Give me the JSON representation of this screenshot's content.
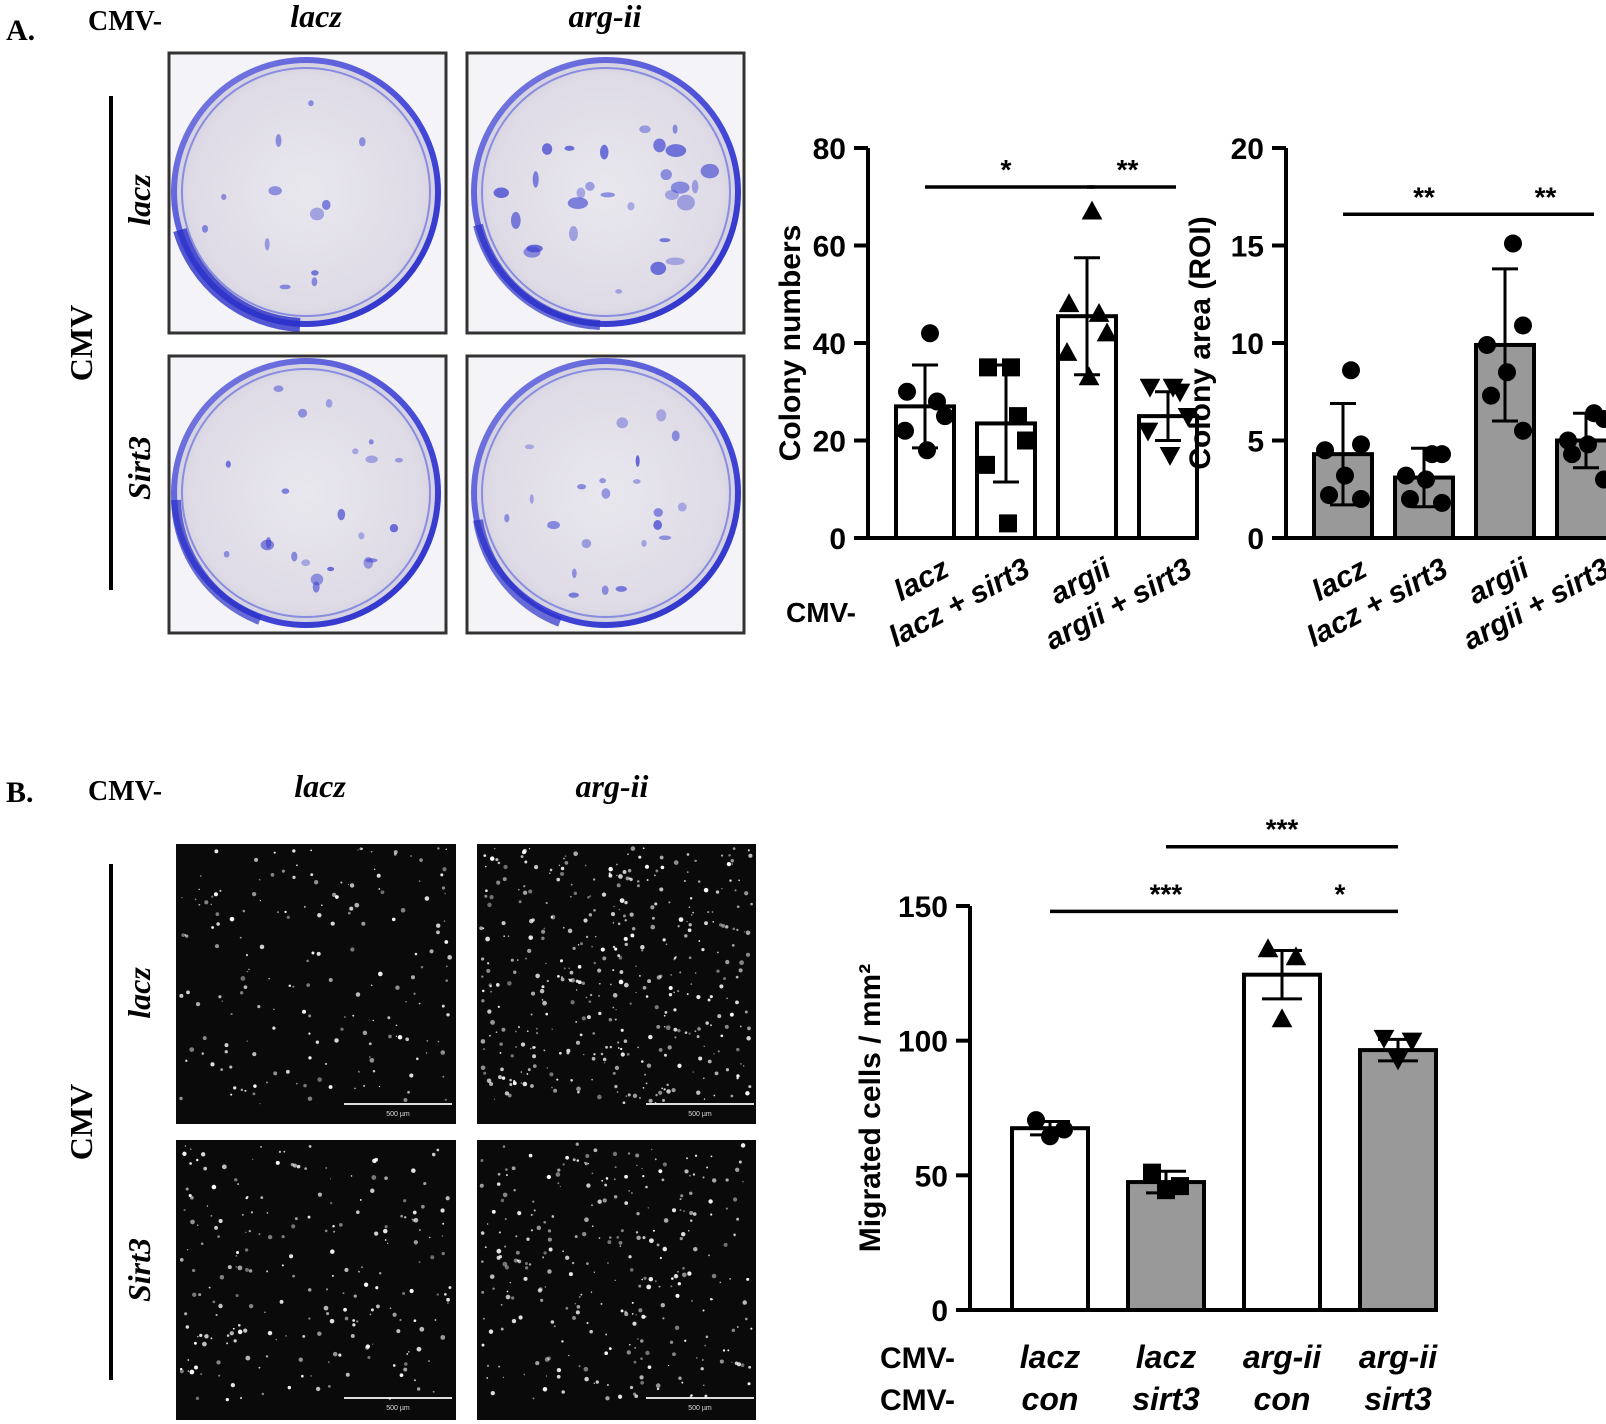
{
  "panel_a": {
    "letter": "A.",
    "cmv_prefix": "CMV-",
    "col_labels": [
      "lacz",
      "arg-ii"
    ],
    "side_label": "CMV",
    "row_labels": [
      "lacz",
      "Sirt3"
    ]
  },
  "panel_b": {
    "letter": "B.",
    "cmv_prefix": "CMV-",
    "col_labels": [
      "lacz",
      "arg-ii"
    ],
    "side_label": "CMV",
    "row_labels": [
      "lacz",
      "Sirt3"
    ],
    "scale_bar_text": "500 µm"
  },
  "colors": {
    "white_bar": "#ffffff",
    "grey_bar": "#999999",
    "plate_blue": "#3a3fd0",
    "plate_bg": "#e4e2ea"
  },
  "chart_data": [
    {
      "id": "colony-numbers",
      "type": "bar",
      "ylabel": "Colony numbers",
      "ylim": [
        0,
        80
      ],
      "yticks": [
        0,
        20,
        40,
        60,
        80
      ],
      "xprefix": "CMV-",
      "categories": [
        "lacz",
        "lacz + sirt3",
        "argii",
        "argii + sirt3"
      ],
      "values": [
        27,
        23.5,
        45.5,
        25
      ],
      "errors": [
        8.5,
        12,
        12,
        5
      ],
      "bar_fills": [
        "#ffffff",
        "#ffffff",
        "#ffffff",
        "#ffffff"
      ],
      "markers": [
        "circle",
        "square",
        "triangle",
        "triangle-down"
      ],
      "points": [
        [
          42,
          30,
          28,
          25,
          22,
          18
        ],
        [
          35,
          35,
          25,
          20,
          15,
          3
        ],
        [
          67,
          48,
          46,
          42,
          38,
          33
        ],
        [
          31,
          31,
          30,
          25,
          22,
          17
        ]
      ],
      "significance": [
        {
          "from": 0,
          "to": 2,
          "label": "*",
          "y": 72
        },
        {
          "from": 2,
          "to": 3,
          "label": "**",
          "y": 72
        }
      ]
    },
    {
      "id": "colony-area",
      "type": "bar",
      "ylabel": "Colony area (ROI)",
      "ylim": [
        0,
        20
      ],
      "yticks": [
        0,
        5,
        10,
        15,
        20
      ],
      "categories": [
        "lacz",
        "lacz + sirt3",
        "argii",
        "argii + sirt3"
      ],
      "values": [
        4.3,
        3.1,
        9.9,
        5
      ],
      "errors": [
        2.6,
        1.5,
        3.9,
        1.4
      ],
      "bar_fills": [
        "#999999",
        "#999999",
        "#999999",
        "#999999"
      ],
      "markers": [
        "circle",
        "circle",
        "circle",
        "circle"
      ],
      "points": [
        [
          8.6,
          4.8,
          4.5,
          3.2,
          2.2,
          2.0
        ],
        [
          4.3,
          4.3,
          3.2,
          3.0,
          2.0,
          1.8
        ],
        [
          15.1,
          10.9,
          9.9,
          8.5,
          7.3,
          5.5
        ],
        [
          6.4,
          6.1,
          5.0,
          4.8,
          4.3,
          3.0
        ]
      ],
      "significance": [
        {
          "from": 0,
          "to": 2,
          "label": "**",
          "y": 16.6
        },
        {
          "from": 2,
          "to": 3,
          "label": "**",
          "y": 16.6
        }
      ]
    },
    {
      "id": "migrated-cells",
      "type": "bar",
      "ylabel": "Migrated cells / mm²",
      "ylim": [
        0,
        150
      ],
      "yticks": [
        0,
        50,
        100,
        150
      ],
      "xprefix_rows": [
        "CMV-",
        "CMV-"
      ],
      "categories_line1": [
        "lacz",
        "lacz",
        "arg-ii",
        "arg-ii"
      ],
      "categories_line2": [
        "con",
        "sirt3",
        "con",
        "sirt3"
      ],
      "values": [
        67.5,
        47.5,
        124.5,
        96.5
      ],
      "errors": [
        2.5,
        4,
        9,
        4
      ],
      "bar_fills": [
        "#ffffff",
        "#999999",
        "#ffffff",
        "#999999"
      ],
      "markers": [
        "circle",
        "square",
        "triangle",
        "triangle-down"
      ],
      "points": [
        [
          70.5,
          67,
          64.5
        ],
        [
          51,
          46,
          44.5
        ],
        [
          134,
          131,
          108
        ],
        [
          101,
          100,
          93
        ]
      ],
      "significance": [
        {
          "from": 0,
          "to": 2,
          "label": "***",
          "y": 148
        },
        {
          "from": 2,
          "to": 3,
          "label": "*",
          "y": 148
        },
        {
          "from": 1,
          "to": 3,
          "label": "***",
          "y": 172
        }
      ]
    }
  ]
}
